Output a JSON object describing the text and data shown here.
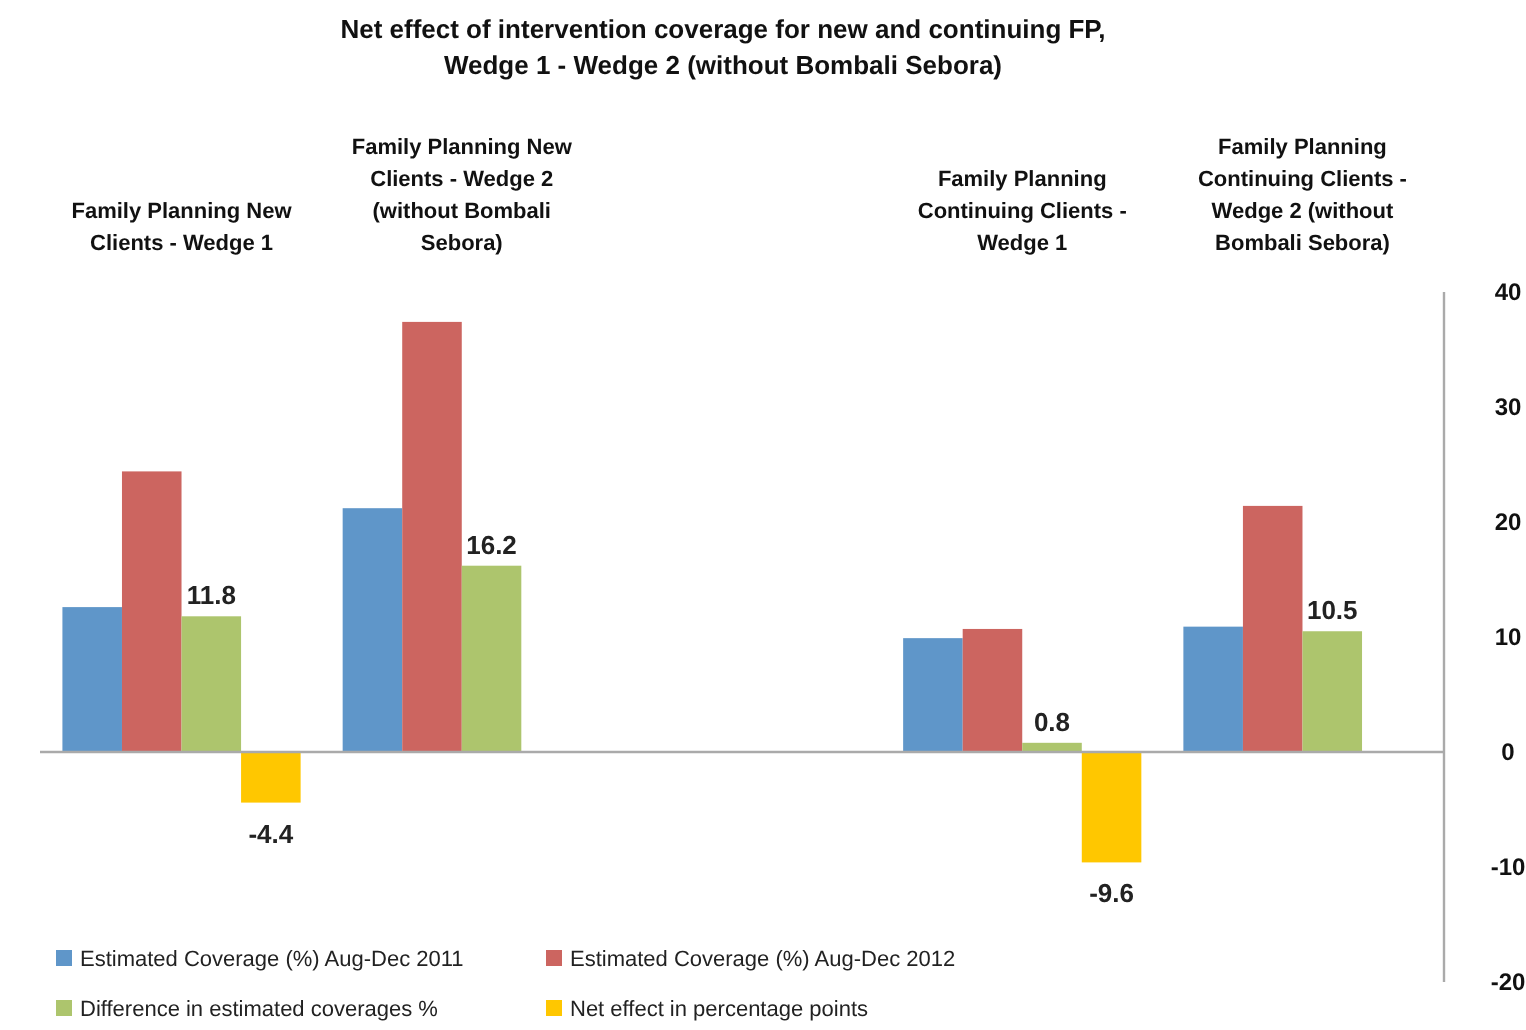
{
  "chart_data": {
    "type": "bar",
    "title": "Net effect of intervention coverage for new and continuing FP, Wedge 1 - Wedge 2 (without Bombali Sebora)",
    "categories": [
      "Family Planning New Clients - Wedge 1",
      "Family Planning New Clients - Wedge 2 (without Bombali Sebora)",
      null,
      "Family Planning Continuing Clients - Wedge 1",
      "Family Planning Continuing Clients - Wedge 2 (without Bombali Sebora)"
    ],
    "series": [
      {
        "name": "Estimated Coverage (%) Aug-Dec 2011",
        "color": "#5f96c9",
        "values": [
          12.6,
          21.2,
          null,
          9.9,
          10.9
        ]
      },
      {
        "name": "Estimated Coverage (%) Aug-Dec 2012",
        "color": "#cc6560",
        "values": [
          24.4,
          37.4,
          null,
          10.7,
          21.4
        ]
      },
      {
        "name": "Difference in estimated coverages %",
        "color": "#adc56d",
        "values": [
          11.8,
          16.2,
          null,
          0.8,
          10.5
        ],
        "value_labels": [
          "11.8",
          "16.2",
          null,
          "0.8",
          "10.5"
        ]
      },
      {
        "name": "Net effect in percentage points",
        "color": "#ffc700",
        "values": [
          -4.4,
          null,
          null,
          -9.6,
          null
        ],
        "value_labels": [
          "-4.4",
          null,
          null,
          "-9.6",
          null
        ]
      }
    ],
    "ylim": [
      -20,
      40
    ],
    "yticks": [
      -20,
      -10,
      0,
      10,
      20,
      30,
      40
    ],
    "legend": "bottom"
  }
}
